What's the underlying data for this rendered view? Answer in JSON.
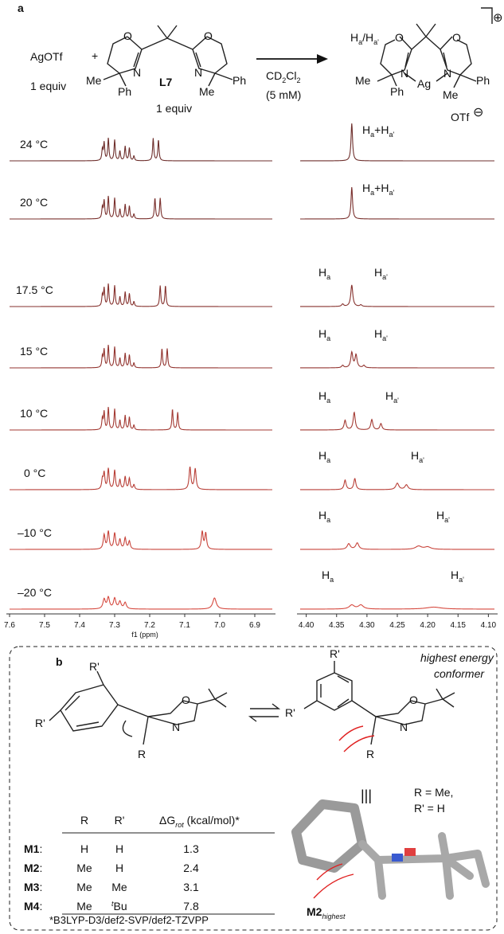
{
  "panel_a": {
    "label": "a",
    "reaction": {
      "reagent": "AgOTf",
      "reagent_equiv": "1 equiv",
      "plus": "+",
      "ligand_label": "L7",
      "ligand_equiv": "1 equiv",
      "ligand_atoms": [
        "O",
        "N",
        "N",
        "O",
        "Me",
        "Ph",
        "Me",
        "Ph"
      ],
      "solvent": {
        "main": "CD",
        "sub1": "2",
        "mid": "Cl",
        "sub2": "2"
      },
      "concentration": "(5 mM)",
      "product_h": {
        "h1": "H",
        "s1": "a",
        "slash": "/",
        "h2": "H",
        "s2": "a'"
      },
      "product_atoms": [
        "O",
        "N",
        "Ag",
        "N",
        "O",
        "Me",
        "Ph",
        "Me",
        "Ph"
      ],
      "counterion": "OTf",
      "charge_plus": "⊕",
      "charge_minus": "⊖"
    },
    "spectra": {
      "xlabel": "f1 (ppm)",
      "left_axis": {
        "xlim": [
          7.6,
          6.85
        ],
        "ticks": [
          {
            "value": 7.6,
            "label": "7.6"
          },
          {
            "value": 7.5,
            "label": "7.5"
          },
          {
            "value": 7.4,
            "label": "7.4"
          },
          {
            "value": 7.3,
            "label": "7.3"
          },
          {
            "value": 7.2,
            "label": "7.2"
          },
          {
            "value": 7.1,
            "label": "7.1"
          },
          {
            "value": 7.0,
            "label": "7.0"
          },
          {
            "value": 6.9,
            "label": "6.9"
          }
        ]
      },
      "right_axis": {
        "xlim": [
          4.41,
          4.09
        ],
        "ticks": [
          {
            "value": 4.4,
            "label": "4.40"
          },
          {
            "value": 4.35,
            "label": "4.35"
          },
          {
            "value": 4.3,
            "label": "4.30"
          },
          {
            "value": 4.25,
            "label": "4.25"
          },
          {
            "value": 4.2,
            "label": "4.20"
          },
          {
            "value": 4.15,
            "label": "4.15"
          },
          {
            "value": 4.1,
            "label": "4.10"
          }
        ]
      },
      "rows": [
        {
          "temperature": "24 °C",
          "color": "#6e2f2c",
          "left_peaks": [
            [
              7.335,
              14,
              0.002
            ],
            [
              7.33,
              22,
              0.002
            ],
            [
              7.318,
              28,
              0.002
            ],
            [
              7.3,
              26,
              0.002
            ],
            [
              7.285,
              12,
              0.002
            ],
            [
              7.27,
              18,
              0.002
            ],
            [
              7.258,
              16,
              0.002
            ],
            [
              7.245,
              6,
              0.002
            ],
            [
              7.19,
              28,
              0.002
            ],
            [
              7.175,
              26,
              0.002
            ]
          ],
          "right_peaks": [
            [
              4.325,
              47,
              0.0015
            ]
          ],
          "labels": [
            [
              [
                "H",
                "a"
              ],
              [
                "+H",
                "a'"
              ]
            ]
          ]
        },
        {
          "temperature": "20 °C",
          "color": "#7a302d",
          "left_peaks": [
            [
              7.335,
              14,
              0.002
            ],
            [
              7.33,
              22,
              0.002
            ],
            [
              7.318,
              28,
              0.002
            ],
            [
              7.3,
              26,
              0.002
            ],
            [
              7.285,
              12,
              0.002
            ],
            [
              7.27,
              18,
              0.002
            ],
            [
              7.258,
              16,
              0.002
            ],
            [
              7.245,
              6,
              0.002
            ],
            [
              7.185,
              26,
              0.002
            ],
            [
              7.17,
              26,
              0.002
            ]
          ],
          "right_peaks": [
            [
              4.325,
              40,
              0.0015
            ]
          ],
          "labels": [
            [
              [
                "H",
                "a"
              ],
              [
                "+H",
                "a'"
              ]
            ]
          ]
        },
        {
          "temperature": "17.5 °C",
          "color": "#86322e",
          "left_peaks": [
            [
              7.335,
              14,
              0.002
            ],
            [
              7.33,
              22,
              0.002
            ],
            [
              7.318,
              28,
              0.002
            ],
            [
              7.3,
              26,
              0.002
            ],
            [
              7.285,
              12,
              0.002
            ],
            [
              7.27,
              18,
              0.002
            ],
            [
              7.258,
              16,
              0.002
            ],
            [
              7.245,
              6,
              0.002
            ],
            [
              7.17,
              26,
              0.002
            ],
            [
              7.155,
              26,
              0.002
            ]
          ],
          "right_peaks": [
            [
              4.34,
              3,
              0.002
            ],
            [
              4.325,
              27,
              0.002
            ],
            [
              4.31,
              2,
              0.002
            ]
          ],
          "labels": [
            [
              [
                "H",
                "a"
              ]
            ],
            [
              [
                "H",
                "a'"
              ]
            ]
          ]
        },
        {
          "temperature": "15 °C",
          "color": "#933530",
          "left_peaks": [
            [
              7.335,
              14,
              0.002
            ],
            [
              7.33,
              22,
              0.002
            ],
            [
              7.318,
              28,
              0.002
            ],
            [
              7.3,
              26,
              0.002
            ],
            [
              7.285,
              12,
              0.002
            ],
            [
              7.27,
              18,
              0.002
            ],
            [
              7.258,
              16,
              0.002
            ],
            [
              7.245,
              6,
              0.002
            ],
            [
              7.165,
              24,
              0.002
            ],
            [
              7.15,
              24,
              0.002
            ]
          ],
          "right_peaks": [
            [
              4.34,
              3,
              0.002
            ],
            [
              4.325,
              19,
              0.002
            ],
            [
              4.318,
              16,
              0.002
            ],
            [
              4.305,
              3,
              0.002
            ]
          ],
          "labels": [
            [
              [
                "H",
                "a"
              ]
            ],
            [
              [
                "H",
                "a'"
              ]
            ]
          ]
        },
        {
          "temperature": "10 °C",
          "color": "#a33a33",
          "left_peaks": [
            [
              7.335,
              14,
              0.002
            ],
            [
              7.33,
              22,
              0.002
            ],
            [
              7.318,
              28,
              0.002
            ],
            [
              7.3,
              26,
              0.002
            ],
            [
              7.285,
              12,
              0.002
            ],
            [
              7.27,
              18,
              0.002
            ],
            [
              7.258,
              16,
              0.002
            ],
            [
              7.245,
              6,
              0.002
            ],
            [
              7.135,
              26,
              0.002
            ],
            [
              7.12,
              22,
              0.002
            ]
          ],
          "right_peaks": [
            [
              4.336,
              12,
              0.002
            ],
            [
              4.321,
              22,
              0.002
            ],
            [
              4.292,
              13,
              0.002
            ],
            [
              4.277,
              8,
              0.002
            ]
          ],
          "labels": [
            [
              [
                "H",
                "a"
              ]
            ],
            [
              [
                "H",
                "a'"
              ]
            ]
          ]
        },
        {
          "temperature": "0 °C",
          "color": "#b83f37",
          "left_peaks": [
            [
              7.335,
              12,
              0.0025
            ],
            [
              7.33,
              20,
              0.0025
            ],
            [
              7.318,
              26,
              0.0025
            ],
            [
              7.3,
              24,
              0.0025
            ],
            [
              7.285,
              12,
              0.0025
            ],
            [
              7.27,
              16,
              0.0025
            ],
            [
              7.258,
              14,
              0.0025
            ],
            [
              7.245,
              6,
              0.0025
            ],
            [
              7.085,
              28,
              0.003
            ],
            [
              7.07,
              26,
              0.003
            ]
          ],
          "right_peaks": [
            [
              4.336,
              12,
              0.002
            ],
            [
              4.32,
              14,
              0.002
            ],
            [
              4.25,
              8,
              0.003
            ],
            [
              4.235,
              6,
              0.003
            ]
          ],
          "labels": [
            [
              [
                "H",
                "a"
              ]
            ],
            [
              [
                "H",
                "a'"
              ]
            ]
          ]
        },
        {
          "temperature": "–10 °C",
          "color": "#c8443b",
          "left_peaks": [
            [
              7.33,
              18,
              0.003
            ],
            [
              7.318,
              22,
              0.003
            ],
            [
              7.3,
              20,
              0.003
            ],
            [
              7.285,
              12,
              0.003
            ],
            [
              7.27,
              14,
              0.003
            ],
            [
              7.258,
              10,
              0.003
            ],
            [
              7.05,
              22,
              0.003
            ],
            [
              7.04,
              20,
              0.003
            ]
          ],
          "right_peaks": [
            [
              4.33,
              7,
              0.003
            ],
            [
              4.316,
              8,
              0.003
            ],
            [
              4.215,
              4,
              0.006
            ],
            [
              4.2,
              3,
              0.006
            ]
          ],
          "labels": [
            [
              [
                "H",
                "a"
              ]
            ],
            [
              [
                "H",
                "a'"
              ]
            ]
          ]
        },
        {
          "temperature": "–20 °C",
          "color": "#d6493f",
          "left_peaks": [
            [
              7.33,
              12,
              0.004
            ],
            [
              7.318,
              14,
              0.004
            ],
            [
              7.3,
              13,
              0.004
            ],
            [
              7.285,
              9,
              0.004
            ],
            [
              7.27,
              8,
              0.004
            ],
            [
              7.015,
              14,
              0.006
            ]
          ],
          "right_peaks": [
            [
              4.325,
              5,
              0.005
            ],
            [
              4.31,
              5,
              0.005
            ],
            [
              4.19,
              2.5,
              0.015
            ]
          ],
          "labels": [
            [
              [
                "H",
                "a"
              ]
            ],
            [
              [
                "H",
                "a'"
              ]
            ]
          ]
        }
      ]
    }
  },
  "panel_b": {
    "label": "b",
    "left_atoms": [
      "R'",
      "R'",
      "O",
      "N",
      "R"
    ],
    "right_atoms": [
      "R'",
      "R'",
      "O",
      "N",
      "R"
    ],
    "conformer_note": [
      "highest energy",
      "conformer"
    ],
    "identity": "|||",
    "substituents": [
      "R = Me,",
      "R' = H"
    ],
    "model_label": {
      "main": "M2",
      "sub": "highest"
    },
    "table": {
      "headers": [
        "R",
        "R'",
        {
          "main": "ΔG",
          "sub": "rot",
          "rest": " (kcal/mol)*"
        }
      ],
      "separator": ":",
      "rows": [
        [
          "M1",
          "H",
          "H",
          "1.3"
        ],
        [
          "M2",
          "Me",
          "H",
          "2.4"
        ],
        [
          "M3",
          "Me",
          "Me",
          "3.1"
        ],
        [
          "M4",
          "Me",
          {
            "sup": "t",
            "main": "Bu"
          },
          "7.8"
        ]
      ],
      "footnote": "*B3LYP-D3/def2-SVP/def2-TZVPP"
    }
  }
}
